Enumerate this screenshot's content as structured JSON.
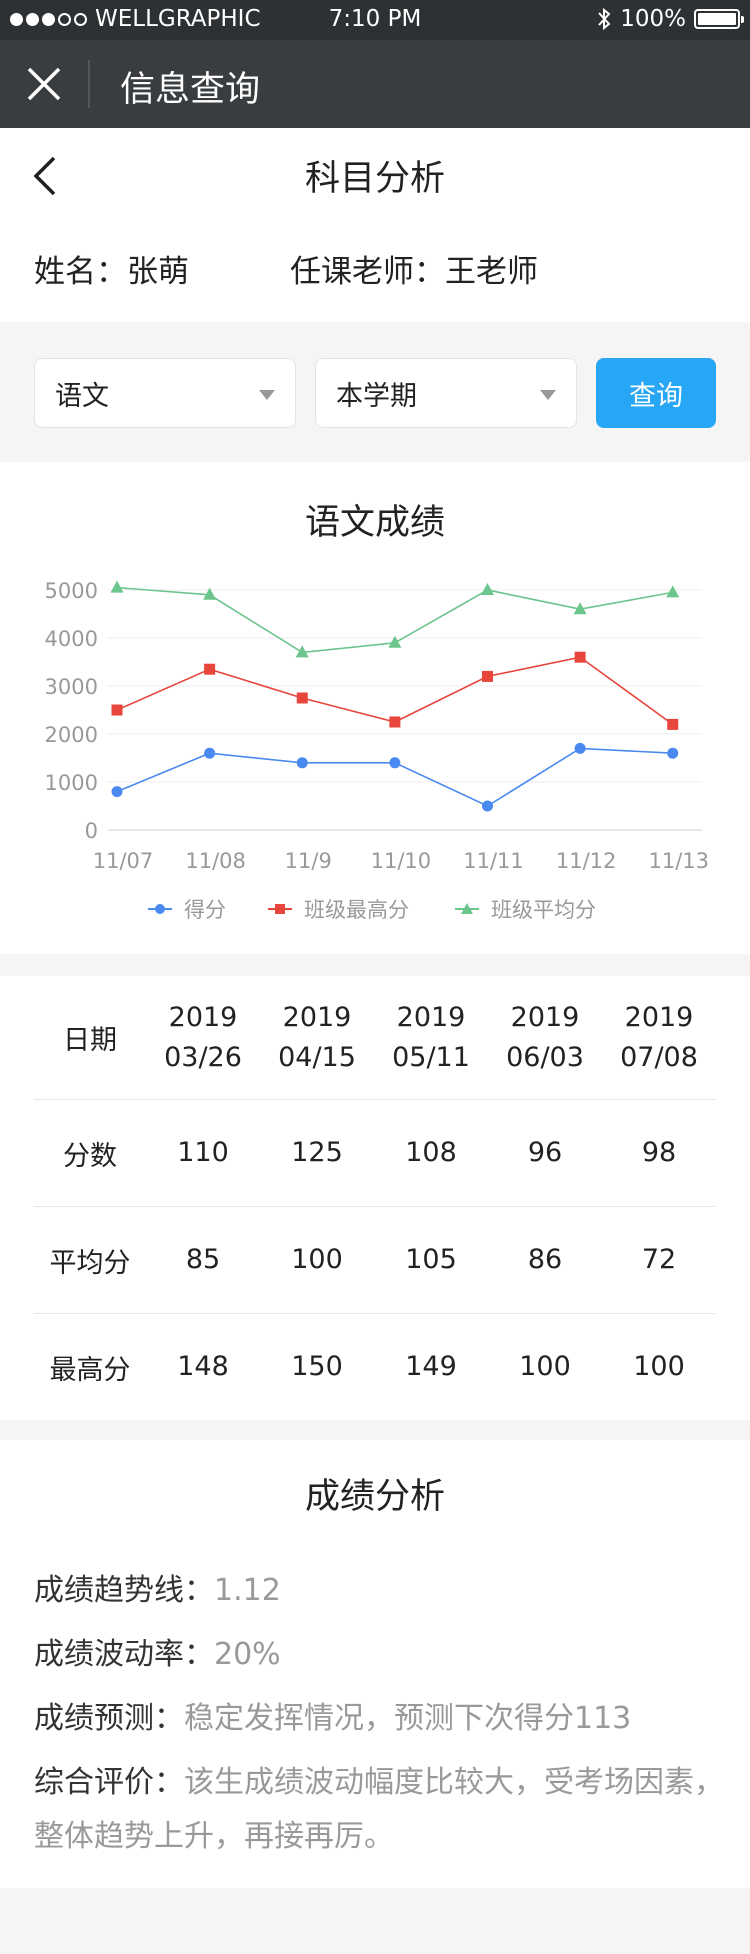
{
  "statusbar": {
    "carrier": "WELLGRAPHIC",
    "time": "7:10 PM",
    "battery": "100%"
  },
  "navbar": {
    "title": "信息查询",
    "close_icon": "close-icon"
  },
  "header": {
    "title": "科目分析",
    "name_label": "姓名：",
    "name": "张萌",
    "teacher_label": "任课老师：",
    "teacher": "王老师"
  },
  "filters": {
    "subject": "语文",
    "term": "本学期",
    "query_label": "查询"
  },
  "chart": {
    "title": "语文成绩"
  },
  "chart_data": {
    "type": "line",
    "categories": [
      "11/07",
      "11/08",
      "11/9",
      "11/10",
      "11/11",
      "11/12",
      "11/13"
    ],
    "yticks": [
      0,
      1000,
      2000,
      3000,
      4000,
      5000
    ],
    "ylim": [
      0,
      5000
    ],
    "legend_position": "bottom",
    "series": [
      {
        "name": "得分",
        "color": "#4a8af0",
        "marker": "circle",
        "values": [
          800,
          1600,
          1400,
          1400,
          500,
          1700,
          1600
        ]
      },
      {
        "name": "班级最高分",
        "color": "#e8453c",
        "marker": "square",
        "values": [
          2500,
          3350,
          2750,
          2250,
          3200,
          3600,
          2200
        ]
      },
      {
        "name": "班级平均分",
        "color": "#6cc58d",
        "marker": "triangle",
        "values": [
          5050,
          4900,
          3700,
          3900,
          5000,
          4600,
          4950
        ]
      }
    ]
  },
  "table": {
    "header_label": "日期",
    "dates": [
      {
        "year": "2019",
        "md": "03/26"
      },
      {
        "year": "2019",
        "md": "04/15"
      },
      {
        "year": "2019",
        "md": "05/11"
      },
      {
        "year": "2019",
        "md": "06/03"
      },
      {
        "year": "2019",
        "md": "07/08"
      }
    ],
    "rows": [
      {
        "label": "分数",
        "values": [
          "110",
          "125",
          "108",
          "96",
          "98"
        ]
      },
      {
        "label": "平均分",
        "values": [
          "85",
          "100",
          "105",
          "86",
          "72"
        ]
      },
      {
        "label": "最高分",
        "values": [
          "148",
          "150",
          "149",
          "100",
          "100"
        ]
      }
    ]
  },
  "analysis": {
    "title": "成绩分析",
    "trend_label": "成绩趋势线：",
    "trend": "1.12",
    "volatility_label": "成绩波动率：",
    "volatility": "20%",
    "forecast_label": "成绩预测：",
    "forecast": "稳定发挥情况，预测下次得分113",
    "overall_label": "综合评价：",
    "overall": "该生成绩波动幅度比较大，受考场因素，整体趋势上升，再接再厉。"
  }
}
